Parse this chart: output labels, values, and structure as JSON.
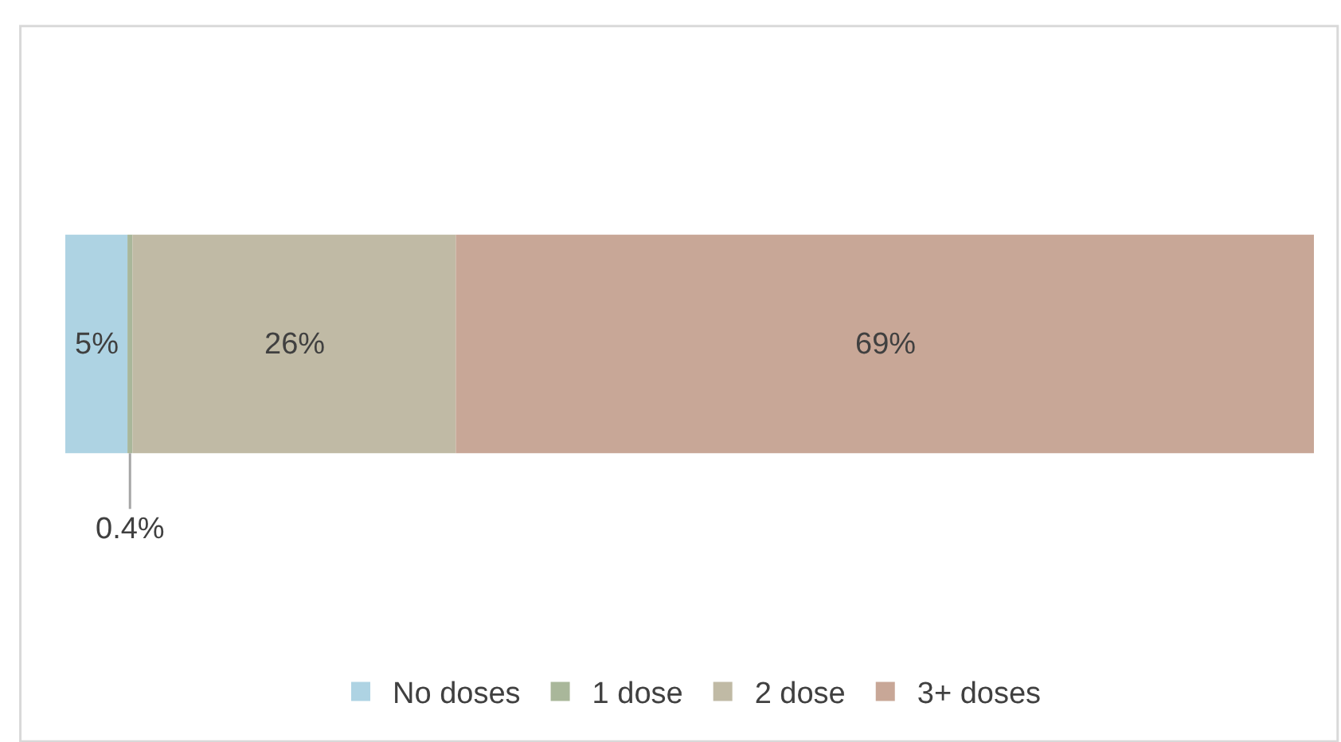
{
  "chart_data": {
    "type": "bar",
    "orientation": "horizontal",
    "stacked": true,
    "categories": [
      null
    ],
    "legend": "bottom",
    "tick_labels": false,
    "series": [
      {
        "name": "No doses",
        "color": "#aed3e3",
        "values": [
          5
        ],
        "value_labels": [
          "5%"
        ]
      },
      {
        "name": "1 dose",
        "color": "#a9b79a",
        "values": [
          0.4
        ],
        "value_labels": [
          "0.4%"
        ]
      },
      {
        "name": "2 dose",
        "color": "#c0baa5",
        "values": [
          26
        ],
        "value_labels": [
          "26%"
        ]
      },
      {
        "name": "3+ doses",
        "color": "#c8a797",
        "values": [
          69
        ],
        "value_labels": [
          "69%"
        ]
      }
    ]
  }
}
